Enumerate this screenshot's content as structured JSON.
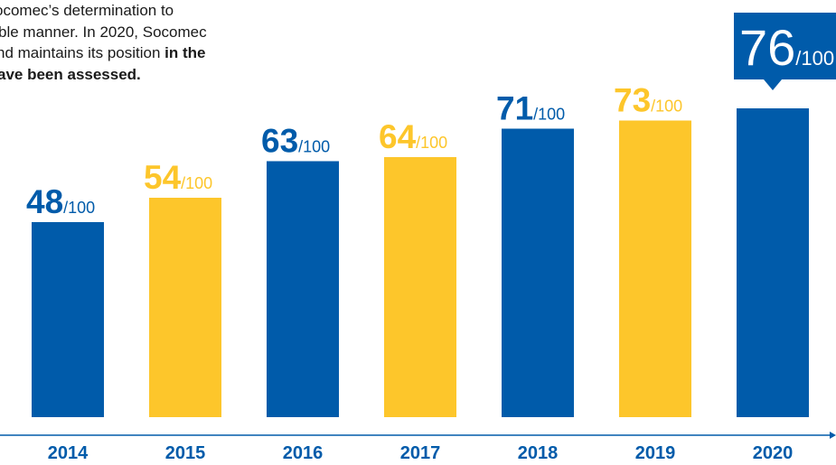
{
  "intro": {
    "lines": [
      {
        "text": "ocomec’s determination to",
        "bold": ""
      },
      {
        "text": "ble manner. In 2020, Socomec",
        "bold": ""
      },
      {
        "text": "nd maintains its position ",
        "bold": "in the"
      },
      {
        "text": "",
        "bold": "ave been assessed."
      }
    ]
  },
  "chart_data": {
    "type": "bar",
    "title": "",
    "xlabel": "",
    "ylabel": "",
    "ylim": [
      0,
      100
    ],
    "grid": false,
    "categories": [
      "2014",
      "2015",
      "2016",
      "2017",
      "2018",
      "2019",
      "2020"
    ],
    "values": [
      48,
      54,
      63,
      64,
      71,
      73,
      76
    ],
    "value_suffix": "/100",
    "highlight": "2020",
    "colors": {
      "primary": "#005BAA",
      "secondary": "#FDC62B",
      "axis": "#005BAA",
      "callout_text": "#FFFFFF"
    },
    "bar_colors": [
      "#005BAA",
      "#FDC62B",
      "#005BAA",
      "#FDC62B",
      "#005BAA",
      "#FDC62B",
      "#005BAA"
    ]
  }
}
